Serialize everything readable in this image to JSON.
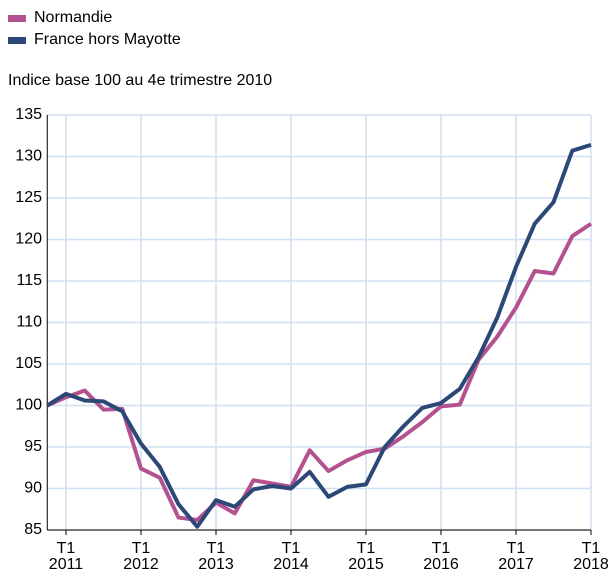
{
  "chart_data": {
    "type": "line",
    "subtitle": "Indice base 100 au 4e trimestre 2010",
    "categories": [
      null,
      "T1\n2011",
      null,
      null,
      null,
      "T1\n2012",
      null,
      null,
      null,
      "T1\n2013",
      null,
      null,
      null,
      "T1\n2014",
      null,
      null,
      null,
      "T1\n2015",
      null,
      null,
      null,
      "T1\n2016",
      null,
      null,
      null,
      "T1\n2017",
      null,
      null,
      null,
      "T1\n2018"
    ],
    "series": [
      {
        "name": "Normandie",
        "color": "#b4528f",
        "values": [
          100,
          101,
          101.8,
          99.5,
          99.6,
          92.4,
          91.3,
          86.5,
          86.2,
          88.3,
          87.0,
          91.0,
          90.6,
          90.2,
          94.6,
          92.1,
          93.4,
          94.4,
          94.8,
          96.3,
          98.0,
          99.9,
          100.1,
          105.5,
          108.3,
          111.8,
          116.2,
          115.9,
          120.4,
          121.9
        ]
      },
      {
        "name": "France hors Mayotte",
        "color": "#2c4876",
        "values": [
          100,
          101.4,
          100.6,
          100.5,
          99.3,
          95.4,
          92.6,
          88.1,
          85.4,
          88.6,
          87.8,
          89.9,
          90.3,
          90.0,
          92.0,
          89.0,
          90.2,
          90.5,
          95.0,
          97.5,
          99.7,
          100.3,
          102.0,
          105.8,
          110.6,
          116.7,
          121.9,
          124.5,
          130.7,
          131.4
        ]
      }
    ],
    "ylim": [
      85,
      135
    ],
    "yticks": [
      85,
      90,
      95,
      100,
      105,
      110,
      115,
      120,
      125,
      130,
      135
    ],
    "grid": true,
    "legend": "top-left"
  }
}
